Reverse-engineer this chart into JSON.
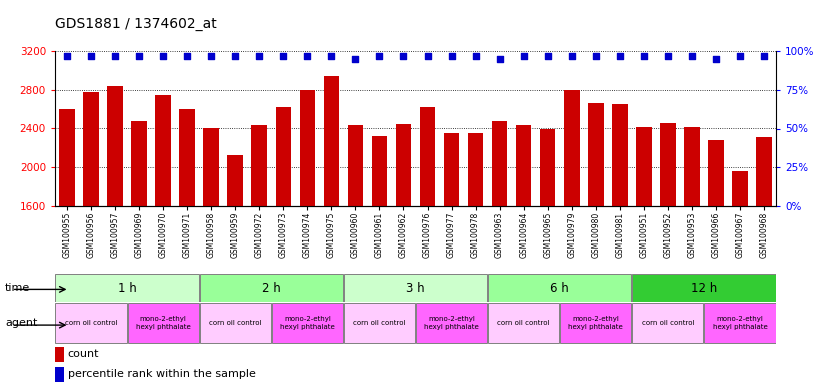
{
  "title": "GDS1881 / 1374602_at",
  "samples": [
    "GSM100955",
    "GSM100956",
    "GSM100957",
    "GSM100969",
    "GSM100970",
    "GSM100971",
    "GSM100958",
    "GSM100959",
    "GSM100972",
    "GSM100973",
    "GSM100974",
    "GSM100975",
    "GSM100960",
    "GSM100961",
    "GSM100962",
    "GSM100976",
    "GSM100977",
    "GSM100978",
    "GSM100963",
    "GSM100964",
    "GSM100965",
    "GSM100979",
    "GSM100980",
    "GSM100981",
    "GSM100951",
    "GSM100952",
    "GSM100953",
    "GSM100966",
    "GSM100967",
    "GSM100968"
  ],
  "counts": [
    2600,
    2780,
    2840,
    2480,
    2750,
    2600,
    2410,
    2130,
    2440,
    2620,
    2800,
    2940,
    2440,
    2320,
    2450,
    2620,
    2350,
    2350,
    2480,
    2440,
    2390,
    2800,
    2660,
    2650,
    2420,
    2460,
    2420,
    2280,
    1960,
    2310
  ],
  "percentile_ranks": [
    97,
    97,
    97,
    97,
    97,
    97,
    97,
    97,
    97,
    97,
    97,
    97,
    95,
    97,
    97,
    97,
    97,
    97,
    95,
    97,
    97,
    97,
    97,
    97,
    97,
    97,
    97,
    95,
    97,
    97
  ],
  "ymin": 1600,
  "ymax": 3200,
  "yticks": [
    1600,
    2000,
    2400,
    2800,
    3200
  ],
  "right_yticks": [
    0,
    25,
    50,
    75,
    100
  ],
  "bar_color": "#cc0000",
  "dot_color": "#0000cc",
  "time_groups": [
    {
      "label": "1 h",
      "start": 0,
      "end": 6,
      "color": "#ccffcc"
    },
    {
      "label": "2 h",
      "start": 6,
      "end": 12,
      "color": "#99ff99"
    },
    {
      "label": "3 h",
      "start": 12,
      "end": 18,
      "color": "#ccffcc"
    },
    {
      "label": "6 h",
      "start": 18,
      "end": 24,
      "color": "#99ff99"
    },
    {
      "label": "12 h",
      "start": 24,
      "end": 30,
      "color": "#33cc33"
    }
  ],
  "agent_groups": [
    {
      "label": "corn oil control",
      "start": 0,
      "end": 3,
      "color": "#ffccff"
    },
    {
      "label": "mono-2-ethyl\nhexyl phthalate",
      "start": 3,
      "end": 6,
      "color": "#ff66ff"
    },
    {
      "label": "corn oil control",
      "start": 6,
      "end": 9,
      "color": "#ffccff"
    },
    {
      "label": "mono-2-ethyl\nhexyl phthalate",
      "start": 9,
      "end": 12,
      "color": "#ff66ff"
    },
    {
      "label": "corn oil control",
      "start": 12,
      "end": 15,
      "color": "#ffccff"
    },
    {
      "label": "mono-2-ethyl\nhexyl phthalate",
      "start": 15,
      "end": 18,
      "color": "#ff66ff"
    },
    {
      "label": "corn oil control",
      "start": 18,
      "end": 21,
      "color": "#ffccff"
    },
    {
      "label": "mono-2-ethyl\nhexyl phthalate",
      "start": 21,
      "end": 24,
      "color": "#ff66ff"
    },
    {
      "label": "corn oil control",
      "start": 24,
      "end": 27,
      "color": "#ffccff"
    },
    {
      "label": "mono-2-ethyl\nhexyl phthalate",
      "start": 27,
      "end": 30,
      "color": "#ff66ff"
    }
  ]
}
